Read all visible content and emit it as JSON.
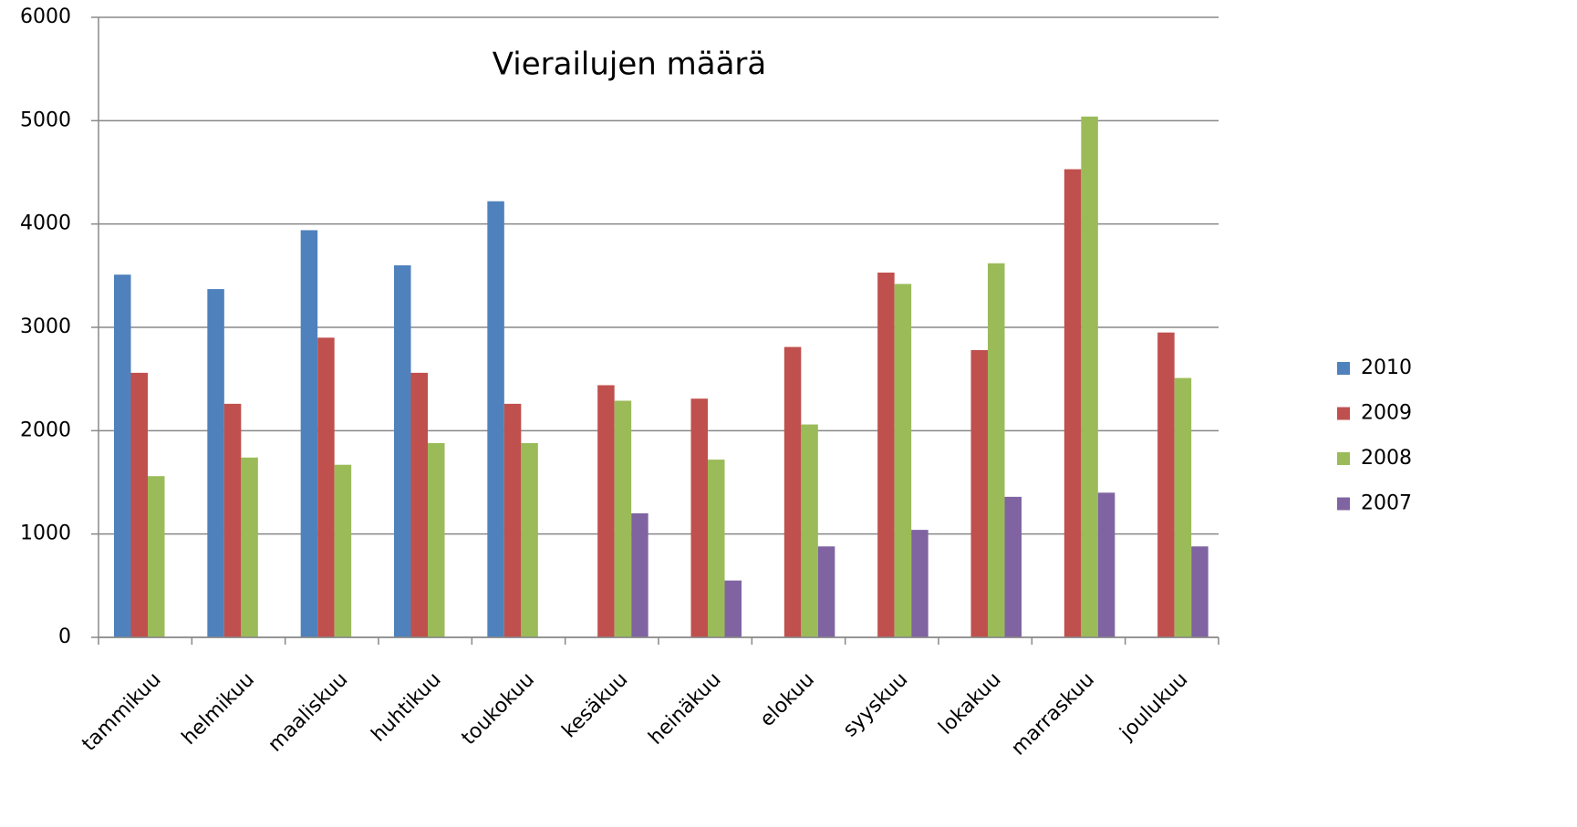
{
  "chart_data": {
    "type": "bar",
    "title": "Vierailujen määrä",
    "categories": [
      "tammikuu",
      "helmikuu",
      "maaliskuu",
      "huhtikuu",
      "toukokuu",
      "kesäkuu",
      "heinäkuu",
      "elokuu",
      "syyskuu",
      "lokakuu",
      "marraskuu",
      "joulukuu"
    ],
    "series": [
      {
        "name": "2010",
        "color": "#4f81bd",
        "values": [
          3510,
          3370,
          3940,
          3600,
          4220,
          null,
          null,
          null,
          null,
          null,
          null,
          null
        ]
      },
      {
        "name": "2009",
        "color": "#c0504d",
        "values": [
          2560,
          2260,
          2900,
          2560,
          2260,
          2440,
          2310,
          2810,
          3530,
          2780,
          4530,
          2950
        ]
      },
      {
        "name": "2008",
        "color": "#9bbb59",
        "values": [
          1560,
          1740,
          1670,
          1880,
          1880,
          2290,
          1720,
          2060,
          3420,
          3620,
          5040,
          2510
        ]
      },
      {
        "name": "2007",
        "color": "#8064a2",
        "values": [
          null,
          null,
          null,
          null,
          null,
          1200,
          550,
          880,
          1040,
          1360,
          1400,
          880
        ]
      }
    ],
    "ylim": [
      0,
      6000
    ],
    "yticks": [
      0,
      1000,
      2000,
      3000,
      4000,
      5000,
      6000
    ],
    "grid": true,
    "legend": "right"
  }
}
